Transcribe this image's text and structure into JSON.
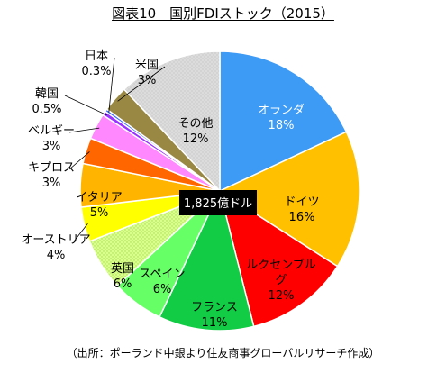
{
  "title": "図表10　国別FDIストック（2015）",
  "source_note": "（出所：ポーランド中銀より住友商事グローバルリサーチ作成）",
  "center_label": "1,825億ドル",
  "chart_data": {
    "type": "pie",
    "title": "図表10　国別FDIストック（2015）",
    "total_label": "1,825億ドル",
    "start": "12 o'clock",
    "direction": "clockwise",
    "legend": "none",
    "slices": [
      {
        "label": "オランダ",
        "percent": 18,
        "value_label": "18%",
        "color": "#3d9af5"
      },
      {
        "label": "ドイツ",
        "percent": 16,
        "value_label": "16%",
        "color": "#ffc000"
      },
      {
        "label": "ルクセンブルグ",
        "percent": 12,
        "value_label": "12%",
        "color": "#ff0000"
      },
      {
        "label": "フランス",
        "percent": 11,
        "value_label": "11%",
        "color": "#11cc44"
      },
      {
        "label": "スペイン",
        "percent": 6,
        "value_label": "6%",
        "color": "#66ff66"
      },
      {
        "label": "英国",
        "percent": 6,
        "value_label": "6%",
        "color": "#ccff66"
      },
      {
        "label": "オーストリア",
        "percent": 4,
        "value_label": "4%",
        "color": "#ffff00"
      },
      {
        "label": "イタリア",
        "percent": 5,
        "value_label": "5%",
        "color": "#ffb400"
      },
      {
        "label": "キプロス",
        "percent": 3,
        "value_label": "3%",
        "color": "#ff6600"
      },
      {
        "label": "ベルギー",
        "percent": 3,
        "value_label": "3%",
        "color": "#ff88ff"
      },
      {
        "label": "韓国",
        "percent": 0.5,
        "value_label": "0.5%",
        "color": "#9933ff"
      },
      {
        "label": "日本",
        "percent": 0.3,
        "value_label": "0.3%",
        "color": "#3366ff"
      },
      {
        "label": "米国",
        "percent": 3,
        "value_label": "3%",
        "color": "#998844"
      },
      {
        "label": "その他",
        "percent": 12,
        "value_label": "12%",
        "color": "#dddddd"
      }
    ]
  }
}
